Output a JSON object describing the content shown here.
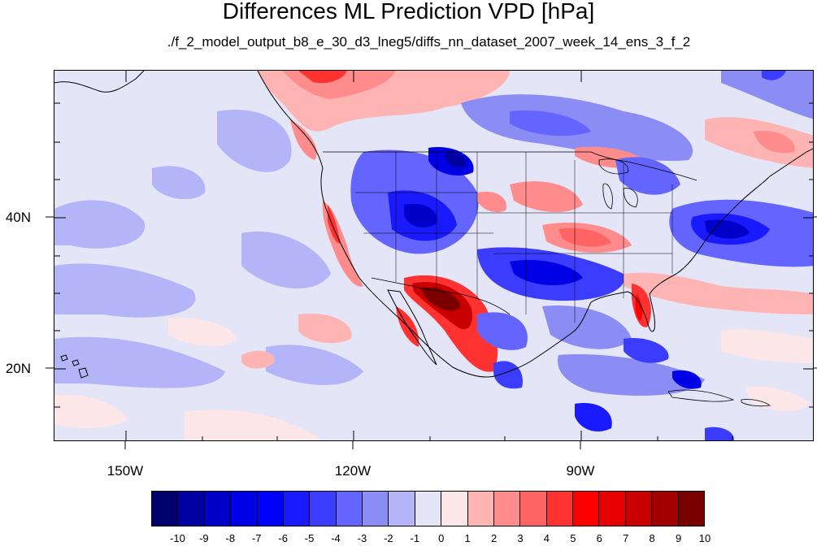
{
  "title": "Differences ML Prediction VPD [hPa]",
  "subtitle": "./f_2_model_output_b8_e_30_d3_lneg5/diffs_nn_dataset_2007_week_14_ens_3_f_2",
  "map": {
    "y_axis_labels": [
      "40N",
      "20N"
    ],
    "x_axis_labels": [
      "150W",
      "120W",
      "90W"
    ],
    "colors": {
      "background": "#e4e6f8",
      "land_edge": "#000000"
    }
  },
  "colorbar": {
    "colors": [
      "#00006e",
      "#0000a0",
      "#0000c8",
      "#0000e6",
      "#0000ff",
      "#1a1aff",
      "#3c3cff",
      "#6464ff",
      "#8c8cf5",
      "#b4b4f8",
      "#e4e6f8",
      "#fde6e8",
      "#ffb4b4",
      "#ff8c8c",
      "#ff6464",
      "#ff3232",
      "#ff0000",
      "#e60000",
      "#c80000",
      "#a00000",
      "#7a0000"
    ],
    "tick_labels": [
      "-10",
      "-9",
      "-8",
      "-7",
      "-6",
      "-5",
      "-4",
      "-3",
      "-2",
      "-1",
      "0",
      "1",
      "2",
      "3",
      "4",
      "5",
      "6",
      "7",
      "8",
      "9",
      "10"
    ]
  }
}
